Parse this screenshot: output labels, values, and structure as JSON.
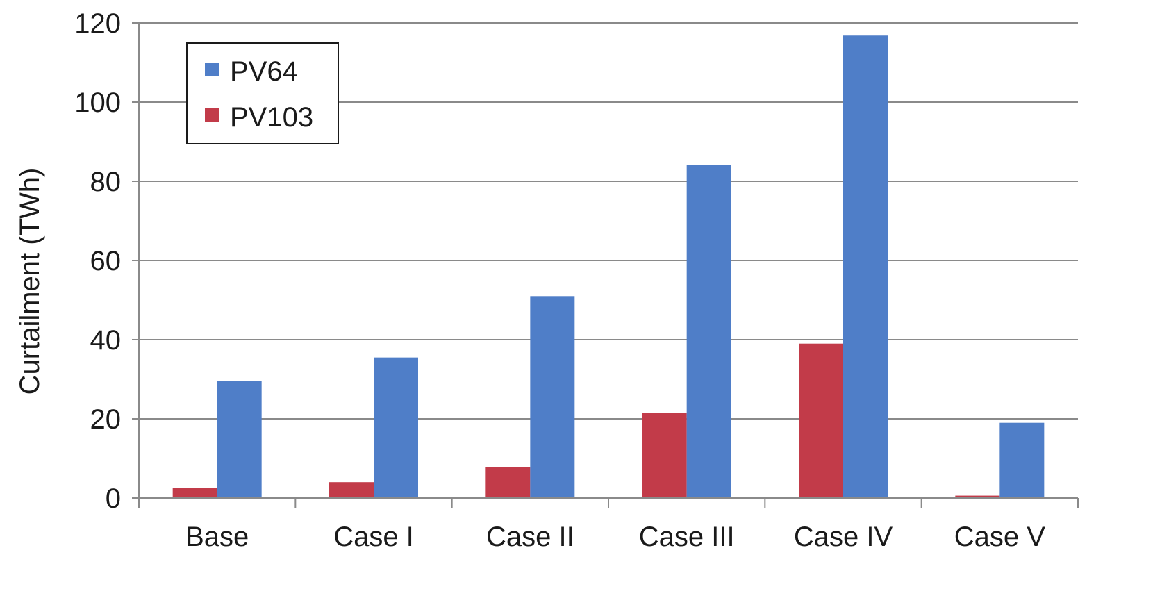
{
  "chart_data": {
    "type": "bar",
    "title": "",
    "xlabel": "",
    "ylabel": "Curtailment (TWh)",
    "ylim": [
      0,
      120
    ],
    "yticks": [
      0,
      20,
      40,
      60,
      80,
      100,
      120
    ],
    "categories": [
      "Base",
      "Case I",
      "Case II",
      "Case III",
      "Case IV",
      "Case V"
    ],
    "series": [
      {
        "name": "PV103",
        "color": "#c23b49",
        "values": [
          2.5,
          4,
          7.8,
          21.5,
          39,
          0.6
        ]
      },
      {
        "name": "PV64",
        "color": "#4f7ec8",
        "values": [
          29.5,
          35.5,
          51,
          84.2,
          116.8,
          19
        ]
      }
    ],
    "legend": {
      "position": "top-left",
      "order": [
        "PV64",
        "PV103"
      ]
    },
    "grid": true
  }
}
